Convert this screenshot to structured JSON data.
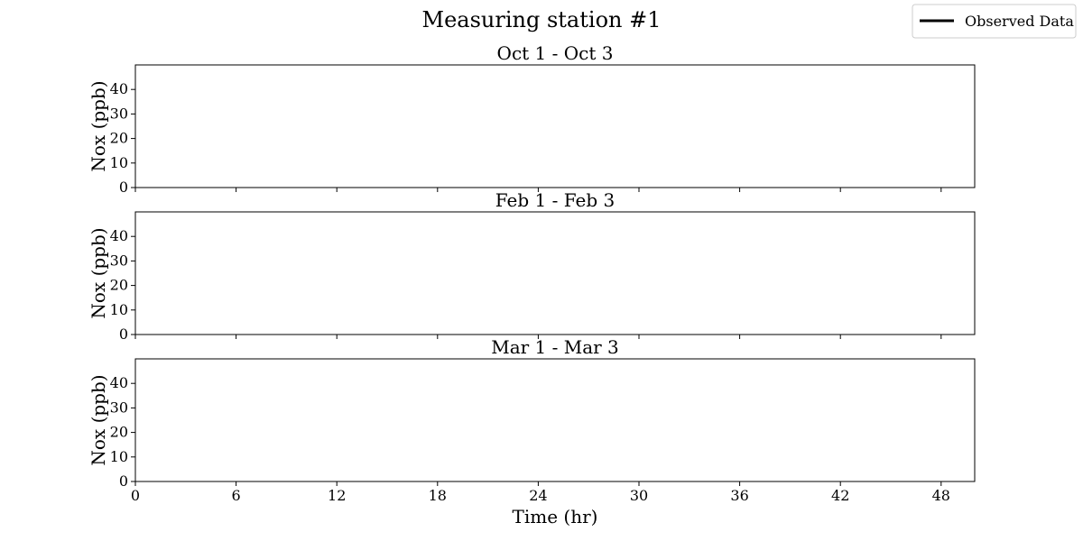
{
  "chart_data": {
    "type": "line",
    "title": "Measuring station #1",
    "legend": {
      "entries": [
        "Observed Data"
      ],
      "placement": "top-right",
      "color": "#000000"
    },
    "shared_x": {
      "label": "Time (hr)",
      "lim": [
        0,
        50
      ],
      "ticks": [
        0,
        6,
        12,
        18,
        24,
        30,
        36,
        42,
        48
      ]
    },
    "panels": [
      {
        "title": "Oct 1 - Oct 3",
        "ylabel": "Nox (ppb)",
        "ylim": [
          0,
          50
        ],
        "yticks": [
          0,
          10,
          20,
          30,
          40
        ],
        "series": [
          {
            "name": "Observed Data",
            "x": [],
            "y": []
          }
        ]
      },
      {
        "title": "Feb 1 - Feb 3",
        "ylabel": "Nox (ppb)",
        "ylim": [
          0,
          50
        ],
        "yticks": [
          0,
          10,
          20,
          30,
          40
        ],
        "series": [
          {
            "name": "Observed Data",
            "x": [],
            "y": []
          }
        ]
      },
      {
        "title": "Mar 1 - Mar 3",
        "ylabel": "Nox (ppb)",
        "ylim": [
          0,
          50
        ],
        "yticks": [
          0,
          10,
          20,
          30,
          40
        ],
        "series": [
          {
            "name": "Observed Data",
            "x": [],
            "y": []
          }
        ]
      }
    ],
    "grid": false
  }
}
